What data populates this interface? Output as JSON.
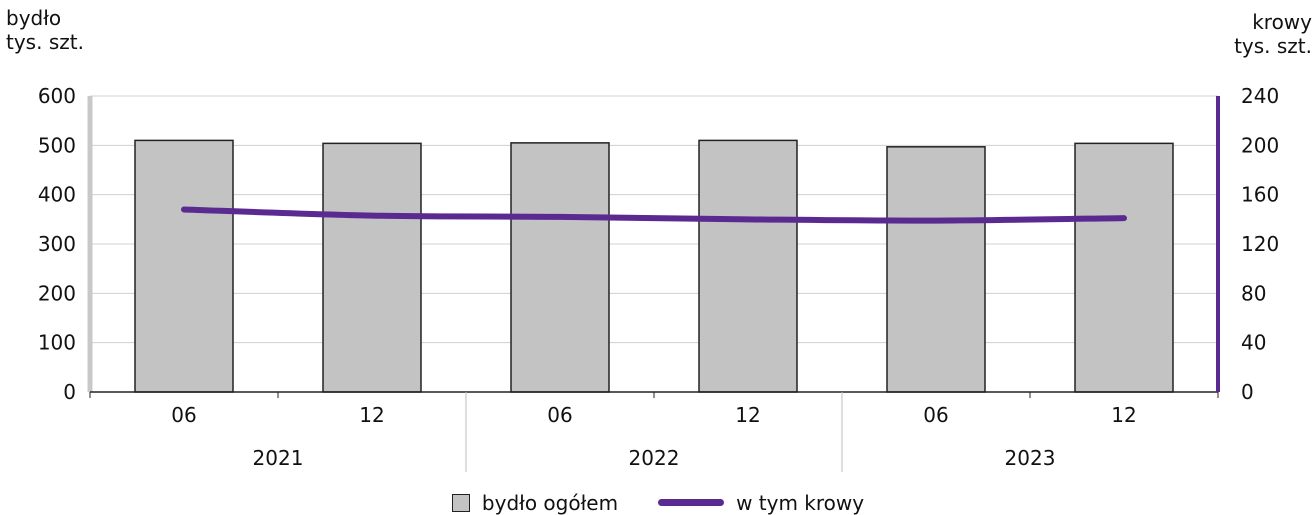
{
  "chart_data": {
    "type": "bar+line",
    "left_axis_title": [
      "bydło",
      "tys. szt."
    ],
    "right_axis_title": [
      "krowy",
      "tys. szt."
    ],
    "categories": [
      "06",
      "12",
      "06",
      "12",
      "06",
      "12"
    ],
    "groups": [
      "2021",
      "2022",
      "2023"
    ],
    "y_left": {
      "min": 0,
      "max": 600,
      "ticks": [
        "0",
        "100",
        "200",
        "300",
        "400",
        "500",
        "600"
      ]
    },
    "y_right": {
      "min": 0,
      "max": 240,
      "ticks": [
        "0",
        "40",
        "80",
        "120",
        "160",
        "200",
        "240"
      ]
    },
    "series": [
      {
        "name": "bydło ogółem",
        "type": "bar",
        "axis": "left",
        "values": [
          510,
          504,
          505,
          510,
          497,
          504
        ]
      },
      {
        "name": "w tym krowy",
        "type": "line",
        "axis": "right",
        "values": [
          148,
          143,
          142,
          140,
          139,
          141
        ]
      }
    ],
    "grid": true,
    "legend_position": "bottom",
    "colors": {
      "bar_fill": "#c3c3c3",
      "bar_stroke": "#222222",
      "line": "#5b2a91",
      "right_axis": "#5b2a91",
      "left_axis": "#c8c8c8",
      "grid": "#d0d0d0"
    }
  }
}
